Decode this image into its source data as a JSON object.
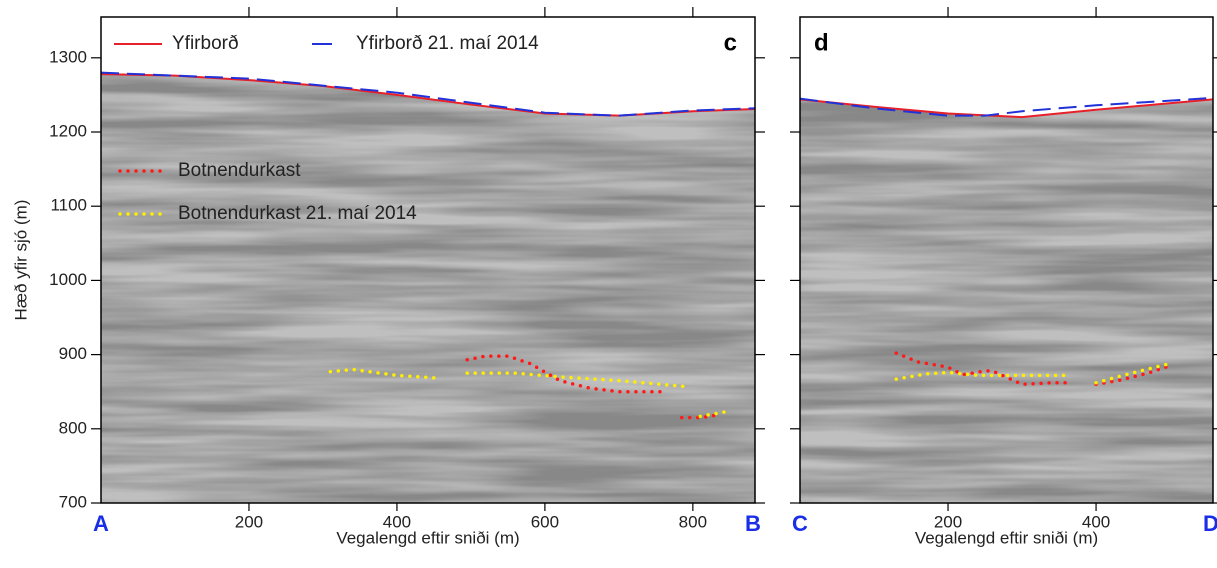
{
  "chart_data": [
    {
      "type": "line",
      "panel_label": "c",
      "start_label": "A",
      "end_label": "B",
      "y_label": "Hæð yfir sjó (m)",
      "x_label": "Vegalengd eftir sniði (m)",
      "xlim": [
        0,
        884
      ],
      "xticks": [
        200,
        400,
        600,
        800
      ],
      "ylim": [
        700,
        1355
      ],
      "yticks": [
        700,
        800,
        900,
        1000,
        1100,
        1200,
        1300
      ],
      "series": [
        {
          "name": "Yfirborð",
          "color": "#e8202a",
          "style": "solid",
          "x": [
            0,
            100,
            200,
            300,
            400,
            500,
            600,
            700,
            800,
            884
          ],
          "values": [
            1278,
            1276,
            1270,
            1262,
            1250,
            1237,
            1225,
            1222,
            1228,
            1231
          ]
        },
        {
          "name": "Yfirborð 21. maí 2014",
          "color": "#2032d8",
          "style": "dashed",
          "x": [
            0,
            200,
            400,
            600,
            700,
            800,
            884
          ],
          "values": [
            1280,
            1272,
            1253,
            1226,
            1222,
            1229,
            1232
          ]
        },
        {
          "name": "Botnendurkast",
          "color": "#ff1a1a",
          "style": "dotted",
          "x": [
            495,
            520,
            550,
            580,
            620,
            660,
            700,
            760,
            770,
            785,
            810,
            830
          ],
          "values": [
            893,
            898,
            898,
            888,
            865,
            855,
            850,
            850,
            null,
            815,
            815,
            818
          ]
        },
        {
          "name": "Botnendurkast 21. maí 2014",
          "color": "#ffee00",
          "style": "dotted",
          "x": [
            310,
            340,
            400,
            460,
            480,
            495,
            560,
            620,
            700,
            790,
            800,
            810,
            845
          ],
          "values": [
            877,
            880,
            872,
            868,
            null,
            875,
            875,
            870,
            865,
            857,
            null,
            817,
            823
          ]
        }
      ]
    },
    {
      "type": "line",
      "panel_label": "d",
      "start_label": "C",
      "end_label": "D",
      "x_label": "Vegalengd eftir sniði (m)",
      "xlim": [
        0,
        558
      ],
      "xticks": [
        200,
        400
      ],
      "ylim": [
        700,
        1355
      ],
      "series": [
        {
          "color": "#e8202a",
          "style": "solid",
          "x": [
            0,
            100,
            200,
            300,
            400,
            558
          ],
          "values": [
            1244,
            1234,
            1225,
            1220,
            1230,
            1244
          ]
        },
        {
          "color": "#2032d8",
          "style": "dashed",
          "x": [
            0,
            100,
            200,
            250,
            300,
            400,
            558
          ],
          "values": [
            1245,
            1232,
            1222,
            1222,
            1228,
            1236,
            1246
          ]
        },
        {
          "color": "#ff1a1a",
          "style": "dotted",
          "x": [
            130,
            160,
            200,
            220,
            250,
            260,
            300,
            340,
            360,
            380,
            400,
            430,
            470,
            500
          ],
          "values": [
            902,
            890,
            883,
            873,
            878,
            878,
            860,
            862,
            862,
            null,
            860,
            865,
            875,
            885
          ]
        },
        {
          "color": "#ffee00",
          "style": "dotted",
          "x": [
            130,
            170,
            200,
            240,
            300,
            360,
            380,
            400,
            440,
            500
          ],
          "values": [
            867,
            874,
            876,
            872,
            872,
            872,
            null,
            862,
            873,
            888
          ]
        }
      ]
    }
  ]
}
